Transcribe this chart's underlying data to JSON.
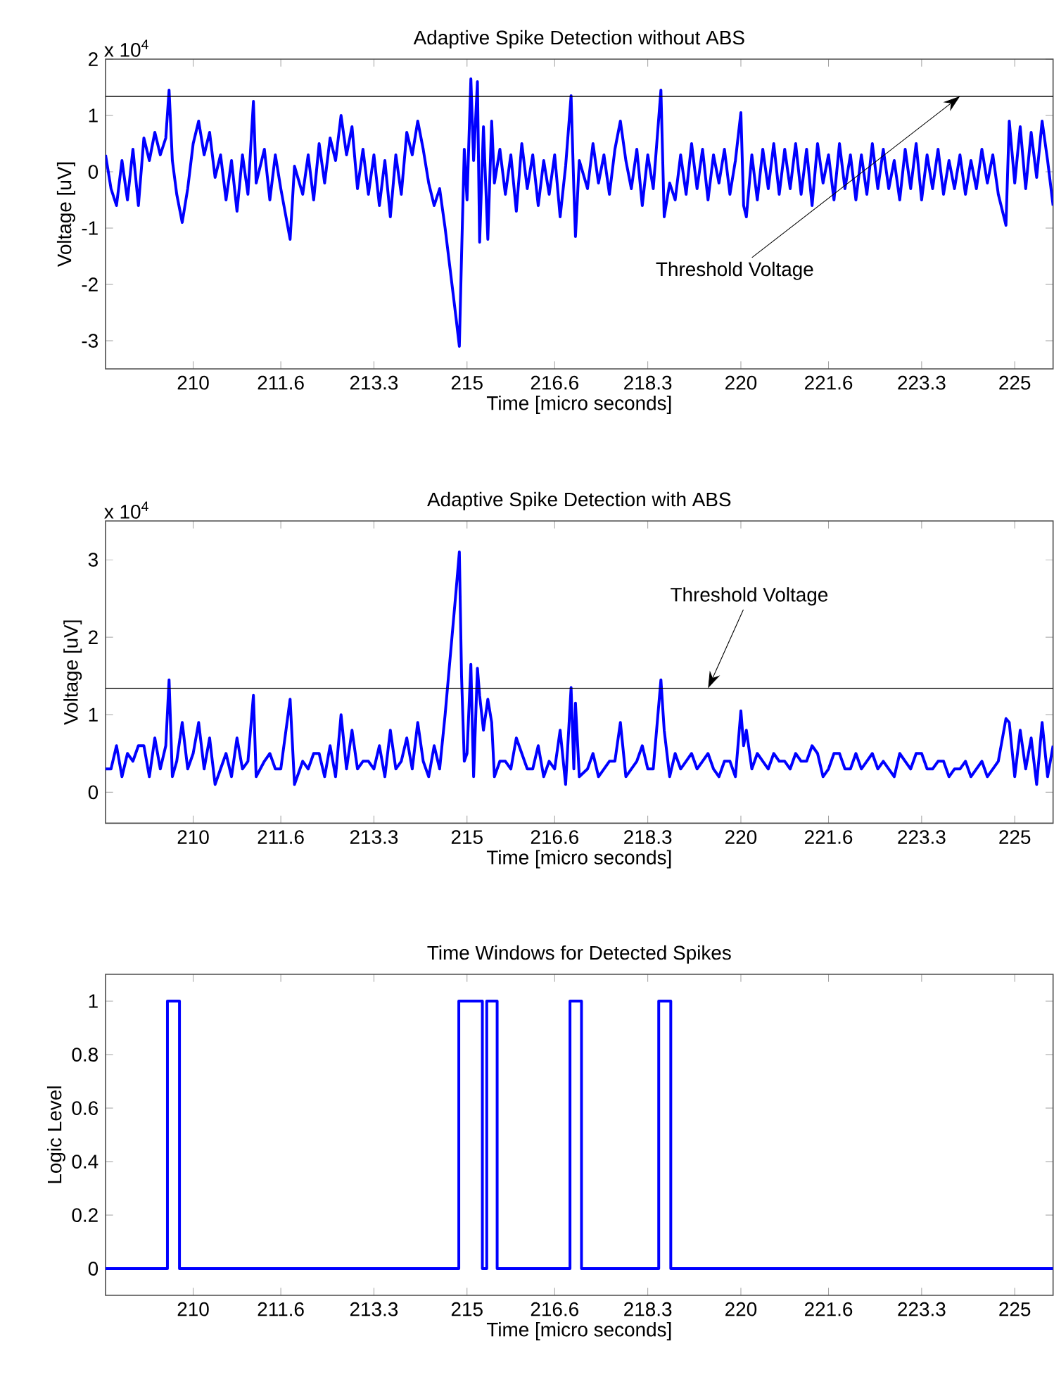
{
  "chart_data": [
    {
      "type": "line",
      "title": "Adaptive Spike Detection without ABS",
      "xlabel": "Time [micro seconds]",
      "ylabel": "Voltage [uV]",
      "xlim": [
        208.4,
        225.7
      ],
      "ylim": [
        -3.5,
        2
      ],
      "xticks": [
        210,
        211.6,
        213.3,
        215,
        216.6,
        218.3,
        220,
        221.6,
        223.3,
        225
      ],
      "yticks": [
        -3,
        -2,
        -1,
        0,
        1,
        2
      ],
      "ref_lines": [
        {
          "axis": "y",
          "value": 1.34,
          "color": "#000000"
        }
      ],
      "annotations": [
        "x 10$^{4}$",
        {
          "text": "Threshold Voltage",
          "x": 224.0,
          "y": 1.34
        }
      ],
      "x": [
        208.4,
        208.5,
        208.6,
        208.7,
        208.8,
        208.9,
        209.0,
        209.1,
        209.2,
        209.3,
        209.4,
        209.5,
        209.56,
        209.62,
        209.7,
        209.8,
        209.9,
        210.0,
        210.1,
        210.2,
        210.3,
        210.4,
        210.5,
        210.6,
        210.7,
        210.8,
        210.9,
        211.0,
        211.1,
        211.15,
        211.3,
        211.4,
        211.5,
        211.6,
        211.77,
        211.85,
        212.0,
        212.1,
        212.2,
        212.3,
        212.4,
        212.5,
        212.6,
        212.7,
        212.8,
        212.9,
        213.0,
        213.1,
        213.2,
        213.3,
        213.4,
        213.5,
        213.6,
        213.7,
        213.8,
        213.9,
        214.0,
        214.1,
        214.2,
        214.3,
        214.4,
        214.5,
        214.6,
        214.7,
        214.8,
        214.86,
        214.9,
        214.95,
        215.0,
        215.07,
        215.12,
        215.19,
        215.23,
        215.3,
        215.38,
        215.45,
        215.5,
        215.6,
        215.7,
        215.8,
        215.9,
        216.0,
        216.1,
        216.2,
        216.3,
        216.4,
        216.5,
        216.6,
        216.7,
        216.8,
        216.9,
        216.95,
        216.98,
        217.05,
        217.2,
        217.3,
        217.4,
        217.5,
        217.6,
        217.7,
        217.8,
        217.9,
        218.0,
        218.1,
        218.2,
        218.3,
        218.4,
        218.54,
        218.6,
        218.7,
        218.8,
        218.9,
        219.0,
        219.1,
        219.2,
        219.3,
        219.4,
        219.5,
        219.6,
        219.7,
        219.8,
        219.9,
        220.0,
        220.05,
        220.1,
        220.2,
        220.3,
        220.4,
        220.5,
        220.6,
        220.7,
        220.8,
        220.9,
        221.0,
        221.1,
        221.2,
        221.3,
        221.4,
        221.5,
        221.6,
        221.7,
        221.8,
        221.9,
        222.0,
        222.1,
        222.2,
        222.3,
        222.4,
        222.5,
        222.6,
        222.7,
        222.8,
        222.9,
        223.0,
        223.1,
        223.2,
        223.3,
        223.4,
        223.5,
        223.6,
        223.7,
        223.8,
        223.9,
        224.0,
        224.1,
        224.2,
        224.3,
        224.4,
        224.5,
        224.6,
        224.7,
        224.84,
        224.9,
        225.0,
        225.1,
        225.2,
        225.3,
        225.4,
        225.5,
        225.6,
        225.7
      ],
      "series": [
        {
          "color": "#0000ff",
          "values": [
            0.3,
            -0.3,
            -0.6,
            0.2,
            -0.5,
            0.4,
            -0.6,
            0.6,
            0.2,
            0.7,
            0.3,
            0.6,
            1.45,
            0.2,
            -0.4,
            -0.9,
            -0.3,
            0.5,
            0.9,
            0.3,
            0.7,
            -0.1,
            0.3,
            -0.5,
            0.2,
            -0.7,
            0.3,
            -0.4,
            1.25,
            -0.2,
            0.4,
            -0.5,
            0.3,
            -0.3,
            -1.2,
            0.1,
            -0.4,
            0.3,
            -0.5,
            0.5,
            -0.2,
            0.6,
            0.2,
            1.0,
            0.3,
            0.8,
            -0.3,
            0.4,
            -0.4,
            0.3,
            -0.6,
            0.2,
            -0.8,
            0.3,
            -0.4,
            0.7,
            0.3,
            0.9,
            0.4,
            -0.2,
            -0.6,
            -0.3,
            -1.0,
            -1.8,
            -2.6,
            -3.1,
            -1.5,
            0.4,
            -0.5,
            1.65,
            0.2,
            1.6,
            -1.25,
            0.8,
            -1.2,
            0.9,
            -0.2,
            0.4,
            -0.4,
            0.3,
            -0.7,
            0.5,
            -0.3,
            0.3,
            -0.6,
            0.2,
            -0.4,
            0.3,
            -0.8,
            0.1,
            1.35,
            -0.3,
            -1.15,
            0.2,
            -0.3,
            0.5,
            -0.2,
            0.3,
            -0.4,
            0.4,
            0.9,
            0.2,
            -0.3,
            0.4,
            -0.6,
            0.3,
            -0.3,
            1.45,
            -0.8,
            -0.2,
            -0.5,
            0.3,
            -0.4,
            0.5,
            -0.3,
            0.4,
            -0.5,
            0.3,
            -0.2,
            0.4,
            -0.4,
            0.2,
            1.05,
            -0.6,
            -0.8,
            0.3,
            -0.5,
            0.4,
            -0.3,
            0.5,
            -0.4,
            0.4,
            -0.3,
            0.5,
            -0.4,
            0.4,
            -0.6,
            0.5,
            -0.2,
            0.3,
            -0.5,
            0.5,
            -0.3,
            0.3,
            -0.5,
            0.3,
            -0.4,
            0.5,
            -0.3,
            0.4,
            -0.3,
            0.2,
            -0.5,
            0.4,
            -0.3,
            0.5,
            -0.5,
            0.3,
            -0.3,
            0.4,
            -0.4,
            0.2,
            -0.3,
            0.3,
            -0.4,
            0.2,
            -0.3,
            0.4,
            -0.2,
            0.3,
            -0.4,
            -0.95,
            0.9,
            -0.2,
            0.8,
            -0.3,
            0.7,
            -0.1,
            0.9,
            0.2,
            -0.6
          ]
        }
      ]
    },
    {
      "type": "line",
      "title": "Adaptive Spike Detection with ABS",
      "xlabel": "Time [micro seconds]",
      "ylabel": "Voltage [uV]",
      "xlim": [
        208.4,
        225.7
      ],
      "ylim": [
        -0.4,
        3.5
      ],
      "xticks": [
        210,
        211.6,
        213.3,
        215,
        216.6,
        218.3,
        220,
        221.6,
        223.3,
        225
      ],
      "yticks": [
        0,
        1,
        2,
        3
      ],
      "ref_lines": [
        {
          "axis": "y",
          "value": 1.34,
          "color": "#000000"
        }
      ],
      "annotations": [
        "x 10$^{4}$",
        {
          "text": "Threshold Voltage",
          "x": 219.4,
          "y": 1.34
        }
      ],
      "x": [
        208.4,
        208.5,
        208.6,
        208.7,
        208.8,
        208.9,
        209.0,
        209.1,
        209.2,
        209.3,
        209.4,
        209.5,
        209.56,
        209.62,
        209.7,
        209.8,
        209.9,
        210.0,
        210.1,
        210.2,
        210.3,
        210.4,
        210.5,
        210.6,
        210.7,
        210.8,
        210.9,
        211.0,
        211.1,
        211.15,
        211.3,
        211.4,
        211.5,
        211.6,
        211.77,
        211.85,
        212.0,
        212.1,
        212.2,
        212.3,
        212.4,
        212.5,
        212.6,
        212.7,
        212.8,
        212.9,
        213.0,
        213.1,
        213.2,
        213.3,
        213.4,
        213.5,
        213.6,
        213.7,
        213.8,
        213.9,
        214.0,
        214.1,
        214.2,
        214.3,
        214.4,
        214.5,
        214.6,
        214.7,
        214.8,
        214.86,
        214.9,
        214.95,
        215.0,
        215.07,
        215.12,
        215.19,
        215.23,
        215.3,
        215.38,
        215.45,
        215.5,
        215.6,
        215.7,
        215.8,
        215.9,
        216.0,
        216.1,
        216.2,
        216.3,
        216.4,
        216.5,
        216.6,
        216.7,
        216.8,
        216.9,
        216.95,
        216.98,
        217.05,
        217.2,
        217.3,
        217.4,
        217.5,
        217.6,
        217.7,
        217.8,
        217.9,
        218.0,
        218.1,
        218.2,
        218.3,
        218.4,
        218.54,
        218.6,
        218.7,
        218.8,
        218.9,
        219.0,
        219.1,
        219.2,
        219.3,
        219.4,
        219.5,
        219.6,
        219.7,
        219.8,
        219.9,
        220.0,
        220.05,
        220.1,
        220.2,
        220.3,
        220.4,
        220.5,
        220.6,
        220.7,
        220.8,
        220.9,
        221.0,
        221.1,
        221.2,
        221.3,
        221.4,
        221.5,
        221.6,
        221.7,
        221.8,
        221.9,
        222.0,
        222.1,
        222.2,
        222.3,
        222.4,
        222.5,
        222.6,
        222.7,
        222.8,
        222.9,
        223.0,
        223.1,
        223.2,
        223.3,
        223.4,
        223.5,
        223.6,
        223.7,
        223.8,
        223.9,
        224.0,
        224.1,
        224.2,
        224.3,
        224.4,
        224.5,
        224.6,
        224.7,
        224.84,
        224.9,
        225.0,
        225.1,
        225.2,
        225.3,
        225.4,
        225.5,
        225.6,
        225.7
      ],
      "series": [
        {
          "color": "#0000ff",
          "values": [
            0.3,
            0.3,
            0.6,
            0.2,
            0.5,
            0.4,
            0.6,
            0.6,
            0.2,
            0.7,
            0.3,
            0.6,
            1.45,
            0.2,
            0.4,
            0.9,
            0.3,
            0.5,
            0.9,
            0.3,
            0.7,
            0.1,
            0.3,
            0.5,
            0.2,
            0.7,
            0.3,
            0.4,
            1.25,
            0.2,
            0.4,
            0.5,
            0.3,
            0.3,
            1.2,
            0.1,
            0.4,
            0.3,
            0.5,
            0.5,
            0.2,
            0.6,
            0.2,
            1.0,
            0.3,
            0.8,
            0.3,
            0.4,
            0.4,
            0.3,
            0.6,
            0.2,
            0.8,
            0.3,
            0.4,
            0.7,
            0.3,
            0.9,
            0.4,
            0.2,
            0.6,
            0.3,
            1.0,
            1.8,
            2.6,
            3.1,
            1.5,
            0.4,
            0.5,
            1.65,
            0.2,
            1.6,
            1.25,
            0.8,
            1.2,
            0.9,
            0.2,
            0.4,
            0.4,
            0.3,
            0.7,
            0.5,
            0.3,
            0.3,
            0.6,
            0.2,
            0.4,
            0.3,
            0.8,
            0.1,
            1.35,
            0.3,
            1.15,
            0.2,
            0.3,
            0.5,
            0.2,
            0.3,
            0.4,
            0.4,
            0.9,
            0.2,
            0.3,
            0.4,
            0.6,
            0.3,
            0.3,
            1.45,
            0.8,
            0.2,
            0.5,
            0.3,
            0.4,
            0.5,
            0.3,
            0.4,
            0.5,
            0.3,
            0.2,
            0.4,
            0.4,
            0.2,
            1.05,
            0.6,
            0.8,
            0.3,
            0.5,
            0.4,
            0.3,
            0.5,
            0.4,
            0.4,
            0.3,
            0.5,
            0.4,
            0.4,
            0.6,
            0.5,
            0.2,
            0.3,
            0.5,
            0.5,
            0.3,
            0.3,
            0.5,
            0.3,
            0.4,
            0.5,
            0.3,
            0.4,
            0.3,
            0.2,
            0.5,
            0.4,
            0.3,
            0.5,
            0.5,
            0.3,
            0.3,
            0.4,
            0.4,
            0.2,
            0.3,
            0.3,
            0.4,
            0.2,
            0.3,
            0.4,
            0.2,
            0.3,
            0.4,
            0.95,
            0.9,
            0.2,
            0.8,
            0.3,
            0.7,
            0.1,
            0.9,
            0.2,
            0.6
          ]
        }
      ]
    },
    {
      "type": "step",
      "title": "Time Windows for Detected Spikes",
      "xlabel": "Time [micro seconds]",
      "ylabel": "Logic Level",
      "xlim": [
        208.4,
        225.7
      ],
      "ylim": [
        -0.1,
        1.1
      ],
      "xticks": [
        210,
        211.6,
        213.3,
        215,
        216.6,
        218.3,
        220,
        221.6,
        223.3,
        225
      ],
      "yticks": [
        0,
        0.2,
        0.4,
        0.6,
        0.8,
        1
      ],
      "x": [
        208.4,
        209.53,
        209.75,
        214.85,
        215.28,
        215.36,
        215.55,
        216.88,
        217.09,
        218.5,
        218.72,
        225.7
      ],
      "series": [
        {
          "color": "#0000ff",
          "values": [
            0,
            1,
            0,
            1,
            0,
            1,
            0,
            1,
            0,
            1,
            0,
            0
          ]
        }
      ]
    }
  ]
}
